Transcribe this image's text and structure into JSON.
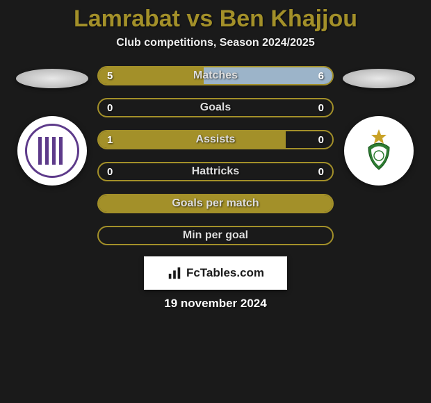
{
  "header": {
    "title": "Lamrabat vs Ben Khajjou",
    "subtitle": "Club competitions, Season 2024/2025"
  },
  "colors": {
    "accent": "#a39029",
    "right_fill": "#9cb4c9",
    "background": "#1a1a1a",
    "ellipse_left": "#e8e8e8",
    "ellipse_right": "#e8e8e8",
    "crest_left_bg": "#ffffff",
    "crest_left_ring": "#5d3a8a",
    "crest_right_bg": "#ffffff",
    "crest_right_accent": "#2e7d32",
    "crest_right_star": "#c9a227"
  },
  "stats": [
    {
      "label": "Matches",
      "left_value": "5",
      "right_value": "6",
      "left_pct": 45,
      "right_pct": 55
    },
    {
      "label": "Goals",
      "left_value": "0",
      "right_value": "0",
      "left_pct": 0,
      "right_pct": 0
    },
    {
      "label": "Assists",
      "left_value": "1",
      "right_value": "0",
      "left_pct": 80,
      "right_pct": 0
    },
    {
      "label": "Hattricks",
      "left_value": "0",
      "right_value": "0",
      "left_pct": 0,
      "right_pct": 0
    },
    {
      "label": "Goals per match",
      "left_value": "",
      "right_value": "",
      "left_pct": 100,
      "right_pct": 0
    },
    {
      "label": "Min per goal",
      "left_value": "",
      "right_value": "",
      "left_pct": 0,
      "right_pct": 0
    }
  ],
  "footer": {
    "brand": "FcTables.com",
    "date": "19 november 2024"
  }
}
